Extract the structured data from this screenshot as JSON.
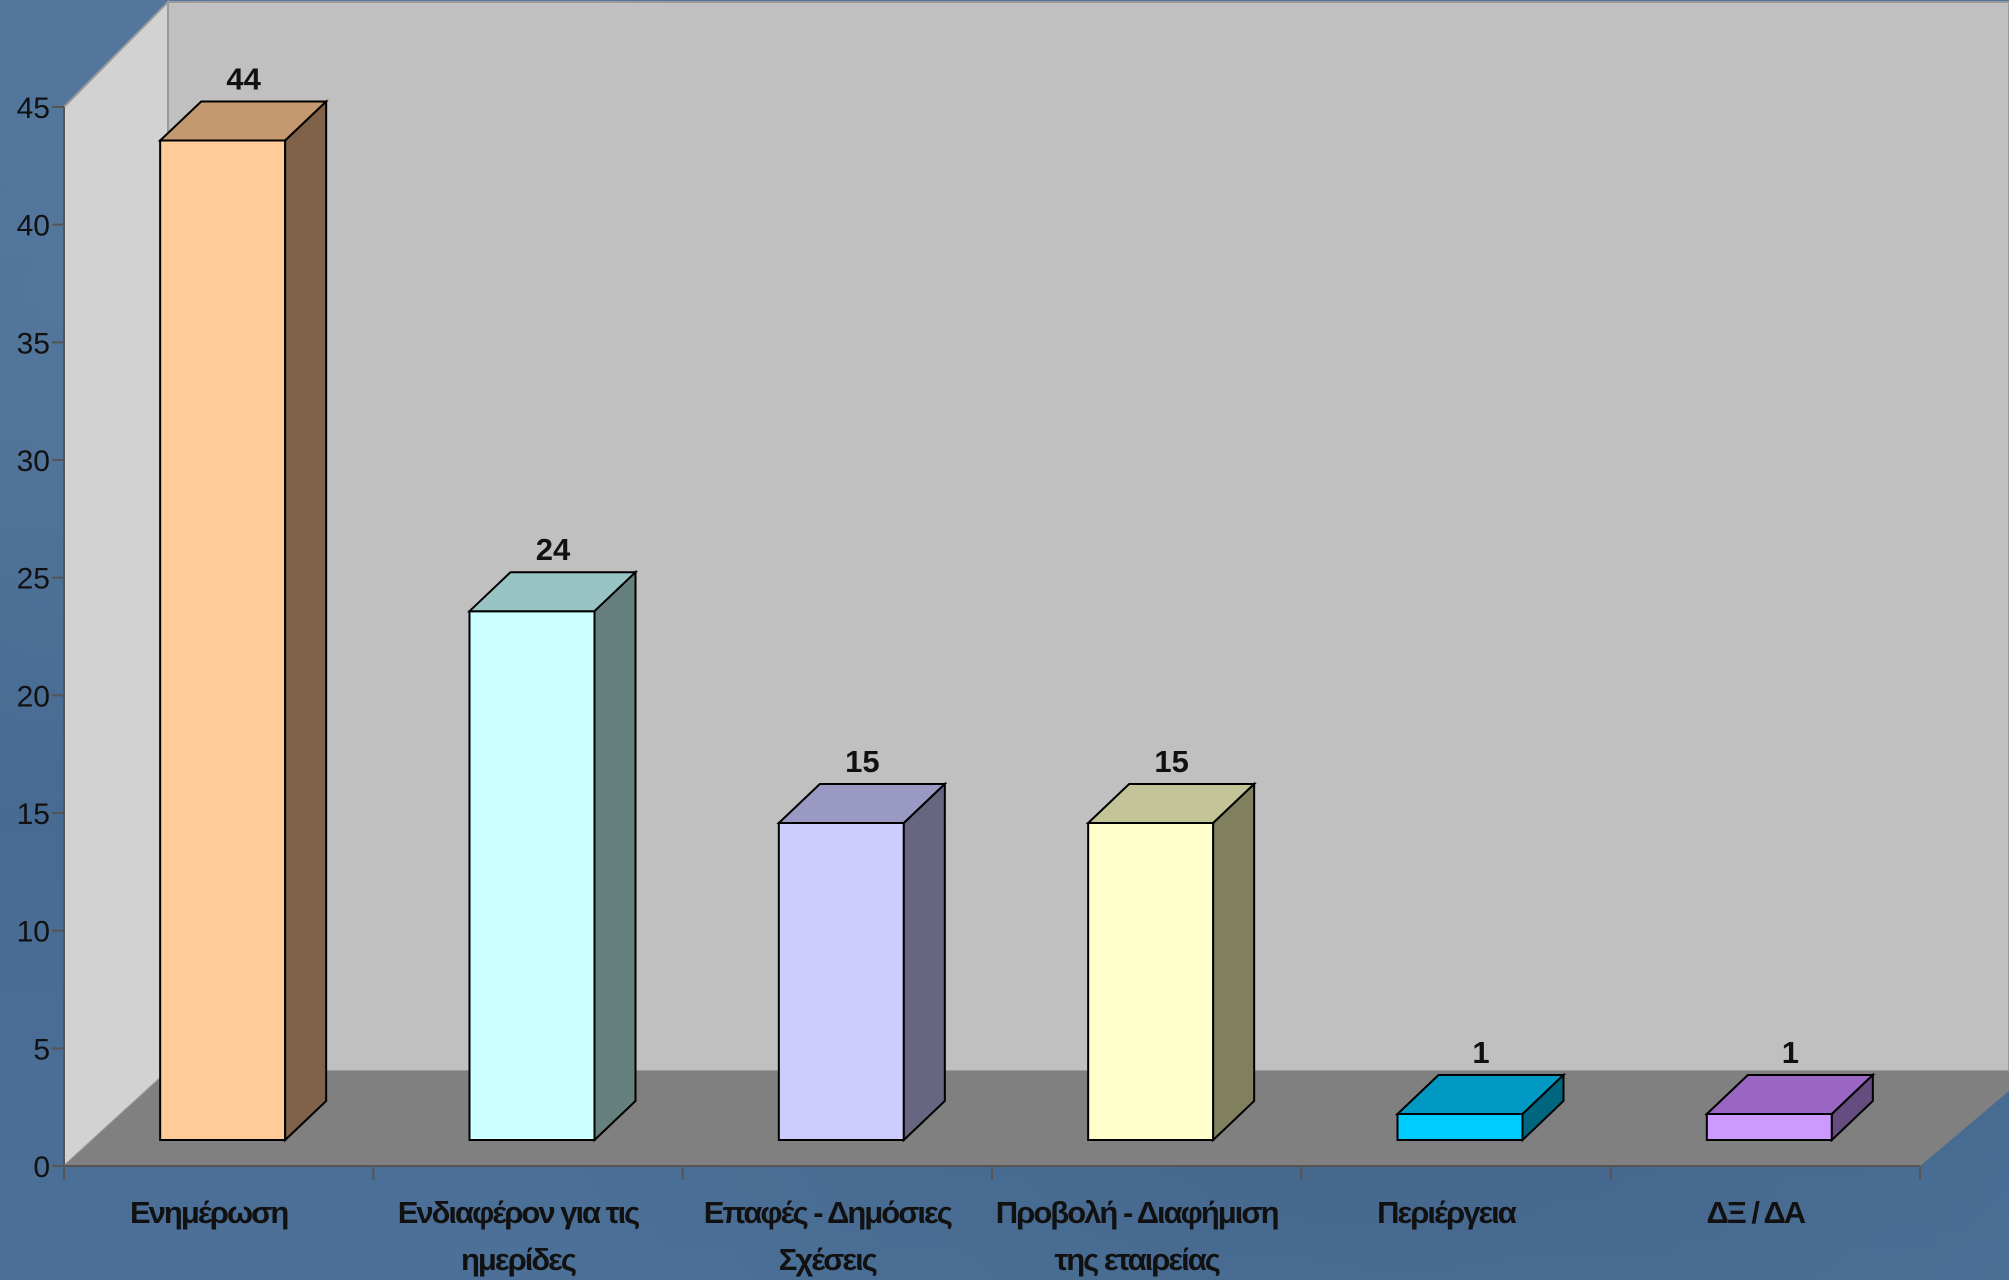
{
  "chart_data": {
    "type": "bar",
    "title": "",
    "xlabel": "",
    "ylabel": "",
    "ylim": [
      0,
      45
    ],
    "yticks": [
      0,
      5,
      10,
      15,
      20,
      25,
      30,
      35,
      40,
      45
    ],
    "categories": [
      [
        "Ενημέρωση"
      ],
      [
        "Ενδιαφέρον για τις",
        "ημερίδες"
      ],
      [
        "Επαφές - Δημόσιες",
        "Σχέσεις"
      ],
      [
        "Προβολή - Διαφήμιση",
        "της εταιρείας"
      ],
      [
        "Περιέργεια"
      ],
      [
        "ΔΞ / ΔΑ"
      ]
    ],
    "values": [
      44,
      24,
      15,
      15,
      1,
      1
    ],
    "data_labels": [
      "44",
      "24",
      "15",
      "15",
      "1",
      "1"
    ],
    "colors": {
      "front": [
        "#ffcc99",
        "#ccffff",
        "#ccccff",
        "#ffffcc",
        "#00ccff",
        "#cc99ff"
      ],
      "top": [
        "#c4996f",
        "#99c4c4",
        "#9999c4",
        "#c4c499",
        "#0099c4",
        "#9966c4"
      ],
      "side": [
        "#7f6249",
        "#668080",
        "#666680",
        "#80805f",
        "#006680",
        "#664d80"
      ],
      "back_wall": "#c0c0c0",
      "side_wall": "#d2d2d2",
      "floor": "#808080"
    },
    "grid": false,
    "legend": "none"
  }
}
